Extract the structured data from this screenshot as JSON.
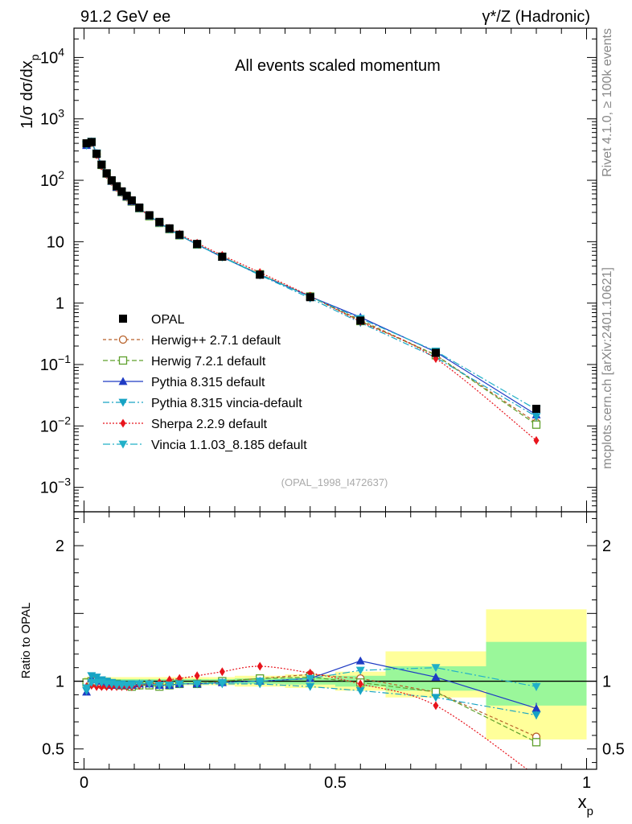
{
  "header": {
    "left": "91.2 GeV ee",
    "right": "γ*/Z (Hadronic)"
  },
  "side": {
    "rivet": "Rivet 4.1.0, ≥ 100k events",
    "mcplots": "mcplots.cern.ch [arXiv:2401.10621]"
  },
  "chart_data": {
    "type": "line",
    "title": "All events scaled momentum",
    "analysis": "(OPAL_1998_I472637)",
    "ylabel": "1/σ dσ/dx_p",
    "xlabel": "x_p",
    "ratio_ylabel": "Ratio to OPAL",
    "xlim": [
      -0.02,
      1.02
    ],
    "ylim_log": [
      0.0004,
      30000
    ],
    "ratio_ylim": [
      0.35,
      2.25
    ],
    "main_y_ticks": [
      {
        "value": 10000,
        "label": "10",
        "exp": "4"
      },
      {
        "value": 1000,
        "label": "10",
        "exp": "3"
      },
      {
        "value": 100,
        "label": "10",
        "exp": "2"
      },
      {
        "value": 10,
        "label": "10",
        "exp": ""
      },
      {
        "value": 1,
        "label": "1",
        "exp": ""
      },
      {
        "value": 0.1,
        "label": "10",
        "exp": "−1"
      },
      {
        "value": 0.01,
        "label": "10",
        "exp": "−2"
      },
      {
        "value": 0.001,
        "label": "10",
        "exp": "−3"
      }
    ],
    "ratio_y_ticks": [
      {
        "value": 0.5,
        "label": "0.5"
      },
      {
        "value": 1,
        "label": "1"
      },
      {
        "value": 2,
        "label": "2"
      }
    ],
    "x_ticks": [
      {
        "value": 0,
        "label": "0"
      },
      {
        "value": 0.5,
        "label": "0.5"
      },
      {
        "value": 1,
        "label": "1"
      }
    ],
    "x": [
      0.005,
      0.015,
      0.025,
      0.035,
      0.045,
      0.055,
      0.065,
      0.075,
      0.085,
      0.095,
      0.11,
      0.13,
      0.15,
      0.17,
      0.19,
      0.225,
      0.275,
      0.35,
      0.45,
      0.55,
      0.7,
      0.9
    ],
    "data": {
      "name": "OPAL",
      "values": [
        400,
        420,
        270,
        180,
        130,
        100,
        80,
        66,
        56,
        47,
        36,
        27,
        21,
        16.5,
        13,
        9.2,
        5.7,
        2.9,
        1.25,
        0.52,
        0.155,
        0.019
      ],
      "ratio_band_bins": [
        {
          "x0": 0.0,
          "x1": 0.1,
          "stat_lo": 0.985,
          "stat_hi": 1.015,
          "tot_lo": 0.97,
          "tot_hi": 1.03
        },
        {
          "x0": 0.1,
          "x1": 0.2,
          "stat_lo": 0.985,
          "stat_hi": 1.015,
          "tot_lo": 0.97,
          "tot_hi": 1.03
        },
        {
          "x0": 0.2,
          "x1": 0.25,
          "stat_lo": 0.985,
          "stat_hi": 1.015,
          "tot_lo": 0.97,
          "tot_hi": 1.03
        },
        {
          "x0": 0.25,
          "x1": 0.3,
          "stat_lo": 0.985,
          "stat_hi": 1.015,
          "tot_lo": 0.97,
          "tot_hi": 1.03
        },
        {
          "x0": 0.3,
          "x1": 0.4,
          "stat_lo": 0.98,
          "stat_hi": 1.02,
          "tot_lo": 0.96,
          "tot_hi": 1.04
        },
        {
          "x0": 0.4,
          "x1": 0.5,
          "stat_lo": 0.975,
          "stat_hi": 1.025,
          "tot_lo": 0.95,
          "tot_hi": 1.05
        },
        {
          "x0": 0.5,
          "x1": 0.6,
          "stat_lo": 0.96,
          "stat_hi": 1.04,
          "tot_lo": 0.93,
          "tot_hi": 1.07
        },
        {
          "x0": 0.6,
          "x1": 0.8,
          "stat_lo": 0.93,
          "stat_hi": 1.11,
          "tot_lo": 0.88,
          "tot_hi": 1.22
        },
        {
          "x0": 0.8,
          "x1": 1.0,
          "stat_lo": 0.82,
          "stat_hi": 1.29,
          "tot_lo": 0.57,
          "tot_hi": 1.53
        }
      ]
    },
    "series": [
      {
        "name": "Herwig++ 2.7.1 default",
        "color": "#b8622b",
        "dash": "4,3",
        "marker": "circle-open",
        "smooth": false,
        "values": [
          395,
          410,
          265,
          175,
          127,
          97,
          77,
          64,
          54,
          45,
          35,
          26.5,
          20.5,
          16.2,
          12.8,
          9.0,
          5.7,
          2.93,
          1.3,
          0.53,
          0.143,
          0.0113
        ],
        "ratio": [
          0.99,
          0.98,
          0.98,
          0.97,
          0.97,
          0.97,
          0.97,
          0.97,
          0.97,
          0.96,
          0.97,
          0.98,
          0.97,
          0.98,
          0.98,
          0.98,
          1.0,
          1.02,
          1.05,
          1.02,
          0.92,
          0.59
        ],
        "ratio_err": [
          0,
          0,
          0,
          0,
          0,
          0,
          0,
          0,
          0,
          0,
          0,
          0,
          0,
          0,
          0,
          0,
          0,
          0,
          0,
          0,
          0.01,
          0.03
        ]
      },
      {
        "name": "Herwig 7.2.1 default",
        "color": "#5fa02c",
        "dash": "6,3",
        "marker": "square-open",
        "smooth": false,
        "values": [
          395,
          420,
          270,
          178,
          129,
          98,
          78,
          64,
          54,
          45,
          35,
          26,
          20.2,
          16,
          12.7,
          9.0,
          5.7,
          2.95,
          1.28,
          0.51,
          0.142,
          0.0105
        ],
        "ratio": [
          0.99,
          1.0,
          1.0,
          0.99,
          0.99,
          0.98,
          0.98,
          0.97,
          0.97,
          0.96,
          0.97,
          0.97,
          0.96,
          0.97,
          0.98,
          0.98,
          1.0,
          1.02,
          1.03,
          0.99,
          0.92,
          0.55
        ],
        "ratio_err": [
          0,
          0,
          0,
          0,
          0,
          0,
          0,
          0,
          0,
          0,
          0,
          0,
          0,
          0,
          0,
          0,
          0,
          0,
          0,
          0,
          0.01,
          0.03
        ]
      },
      {
        "name": "Pythia 8.315 default",
        "color": "#1f3bc4",
        "dash": "",
        "marker": "triangle-up",
        "smooth": false,
        "values": [
          370,
          425,
          275,
          180,
          128,
          97,
          77,
          64,
          54,
          45,
          35,
          26.3,
          20.3,
          16.0,
          12.7,
          9.0,
          5.6,
          2.9,
          1.28,
          0.59,
          0.16,
          0.0152
        ],
        "ratio": [
          0.92,
          1.02,
          1.01,
          1.0,
          0.98,
          0.97,
          0.97,
          0.97,
          0.97,
          0.97,
          0.98,
          0.98,
          0.97,
          0.97,
          0.98,
          0.98,
          0.99,
          1.0,
          1.02,
          1.15,
          1.03,
          0.8
        ],
        "ratio_err": [
          0,
          0,
          0,
          0,
          0,
          0,
          0,
          0,
          0,
          0,
          0,
          0,
          0,
          0,
          0,
          0,
          0,
          0,
          0,
          0,
          0.01,
          0.04
        ]
      },
      {
        "name": "Pythia 8.315 vincia-default",
        "color": "#17a3c4",
        "dash": "8,3,2,3",
        "marker": "triangle-down",
        "smooth": false,
        "values": [
          370,
          430,
          278,
          182,
          130,
          98,
          78,
          65,
          55,
          46,
          35.5,
          26.5,
          20.5,
          16.1,
          12.8,
          9.0,
          5.6,
          2.85,
          1.2,
          0.48,
          0.13,
          0.0142
        ],
        "ratio": [
          0.93,
          1.04,
          1.03,
          1.01,
          1.0,
          0.99,
          0.98,
          0.98,
          0.97,
          0.98,
          0.98,
          0.98,
          0.97,
          0.97,
          0.98,
          0.98,
          0.98,
          0.98,
          0.96,
          0.93,
          0.88,
          0.75
        ],
        "ratio_err": [
          0,
          0,
          0,
          0,
          0,
          0,
          0,
          0,
          0,
          0,
          0,
          0,
          0,
          0,
          0,
          0,
          0,
          0,
          0,
          0,
          0.01,
          0.03
        ]
      },
      {
        "name": "Sherpa 2.2.9 default",
        "color": "#e8141c",
        "dash": "2,2",
        "marker": "diamond",
        "smooth": true,
        "values": [
          385,
          405,
          260,
          172,
          124,
          95,
          76,
          63,
          53,
          45,
          35,
          26.5,
          20.5,
          16.5,
          13.3,
          9.5,
          6.0,
          3.15,
          1.3,
          0.5,
          0.125,
          0.0058
        ],
        "ratio": [
          0.96,
          0.97,
          0.96,
          0.96,
          0.96,
          0.96,
          0.96,
          0.96,
          0.96,
          0.96,
          0.97,
          0.98,
          0.99,
          1.01,
          1.02,
          1.04,
          1.07,
          1.11,
          1.06,
          0.98,
          0.82,
          0.3
        ],
        "ratio_err": [
          0,
          0,
          0,
          0,
          0,
          0,
          0,
          0,
          0,
          0,
          0,
          0,
          0,
          0,
          0,
          0,
          0,
          0,
          0,
          0,
          0.01,
          0.01
        ]
      },
      {
        "name": "Vincia 1.1.03_8.185 default",
        "color": "#21b0c8",
        "dash": "9,3,2,3",
        "marker": "triangle-down",
        "smooth": false,
        "values": [
          380,
          410,
          268,
          178,
          128,
          97,
          78,
          64,
          54,
          45.5,
          35,
          26.4,
          20.4,
          16.0,
          12.7,
          9.0,
          5.7,
          2.9,
          1.27,
          0.56,
          0.165,
          0.0185
        ],
        "ratio": [
          0.95,
          0.99,
          0.99,
          0.99,
          0.98,
          0.98,
          0.97,
          0.97,
          0.97,
          0.97,
          0.98,
          0.98,
          0.97,
          0.97,
          0.98,
          0.98,
          0.99,
          1.0,
          1.02,
          1.08,
          1.1,
          0.96
        ],
        "ratio_err": [
          0,
          0,
          0,
          0,
          0,
          0,
          0,
          0,
          0,
          0,
          0,
          0,
          0,
          0,
          0,
          0,
          0,
          0,
          0,
          0,
          0.01,
          0.03
        ]
      }
    ],
    "legend_position": "middle-left"
  }
}
